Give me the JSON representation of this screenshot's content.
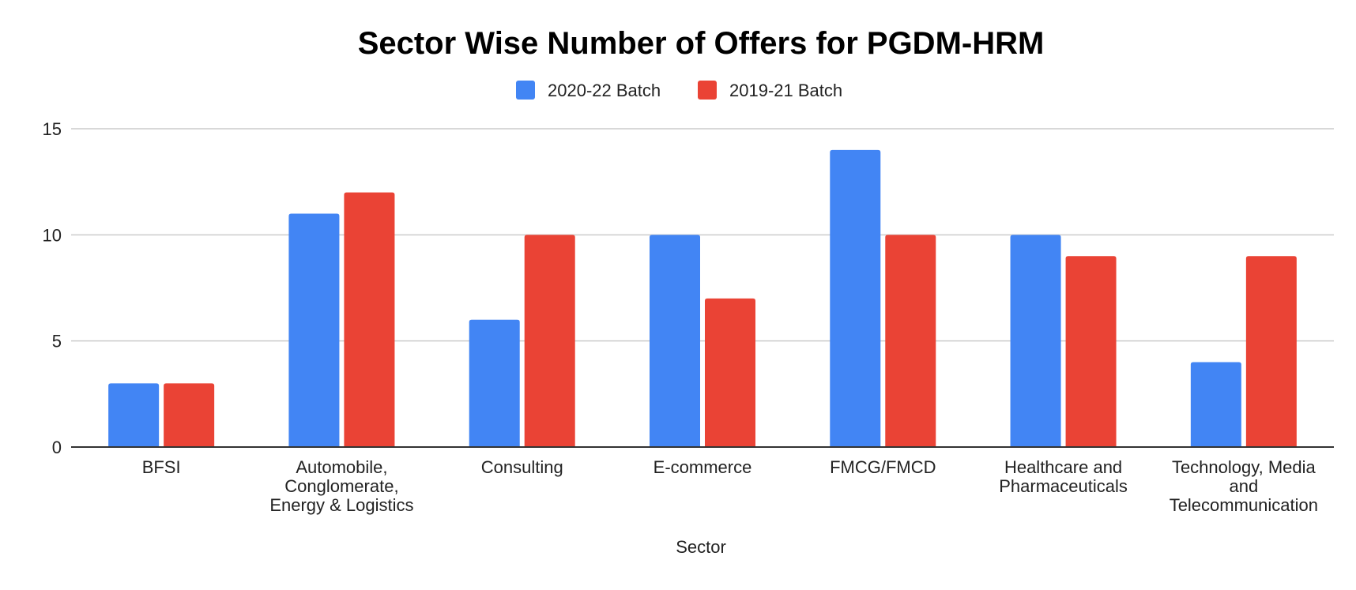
{
  "chart_data": {
    "type": "bar",
    "title": "Sector Wise Number of Offers for PGDM-HRM",
    "xlabel": "Sector",
    "ylabel": "",
    "ylim": [
      0,
      15
    ],
    "yticks": [
      0,
      5,
      10,
      15
    ],
    "grid": true,
    "legend_position": "top",
    "categories": [
      [
        "BFSI"
      ],
      [
        "Automobile,",
        "Conglomerate,",
        "Energy & Logistics"
      ],
      [
        "Consulting"
      ],
      [
        "E-commerce"
      ],
      [
        "FMCG/FMCD"
      ],
      [
        "Healthcare and",
        "Pharmaceuticals"
      ],
      [
        "Technology, Media",
        "and",
        "Telecommunication"
      ]
    ],
    "series": [
      {
        "name": "2020-22 Batch",
        "color": "#4285f4",
        "values": [
          3,
          11,
          6,
          10,
          14,
          10,
          4
        ]
      },
      {
        "name": "2019-21 Batch",
        "color": "#ea4335",
        "values": [
          3,
          12,
          10,
          7,
          10,
          9,
          9
        ]
      }
    ]
  }
}
